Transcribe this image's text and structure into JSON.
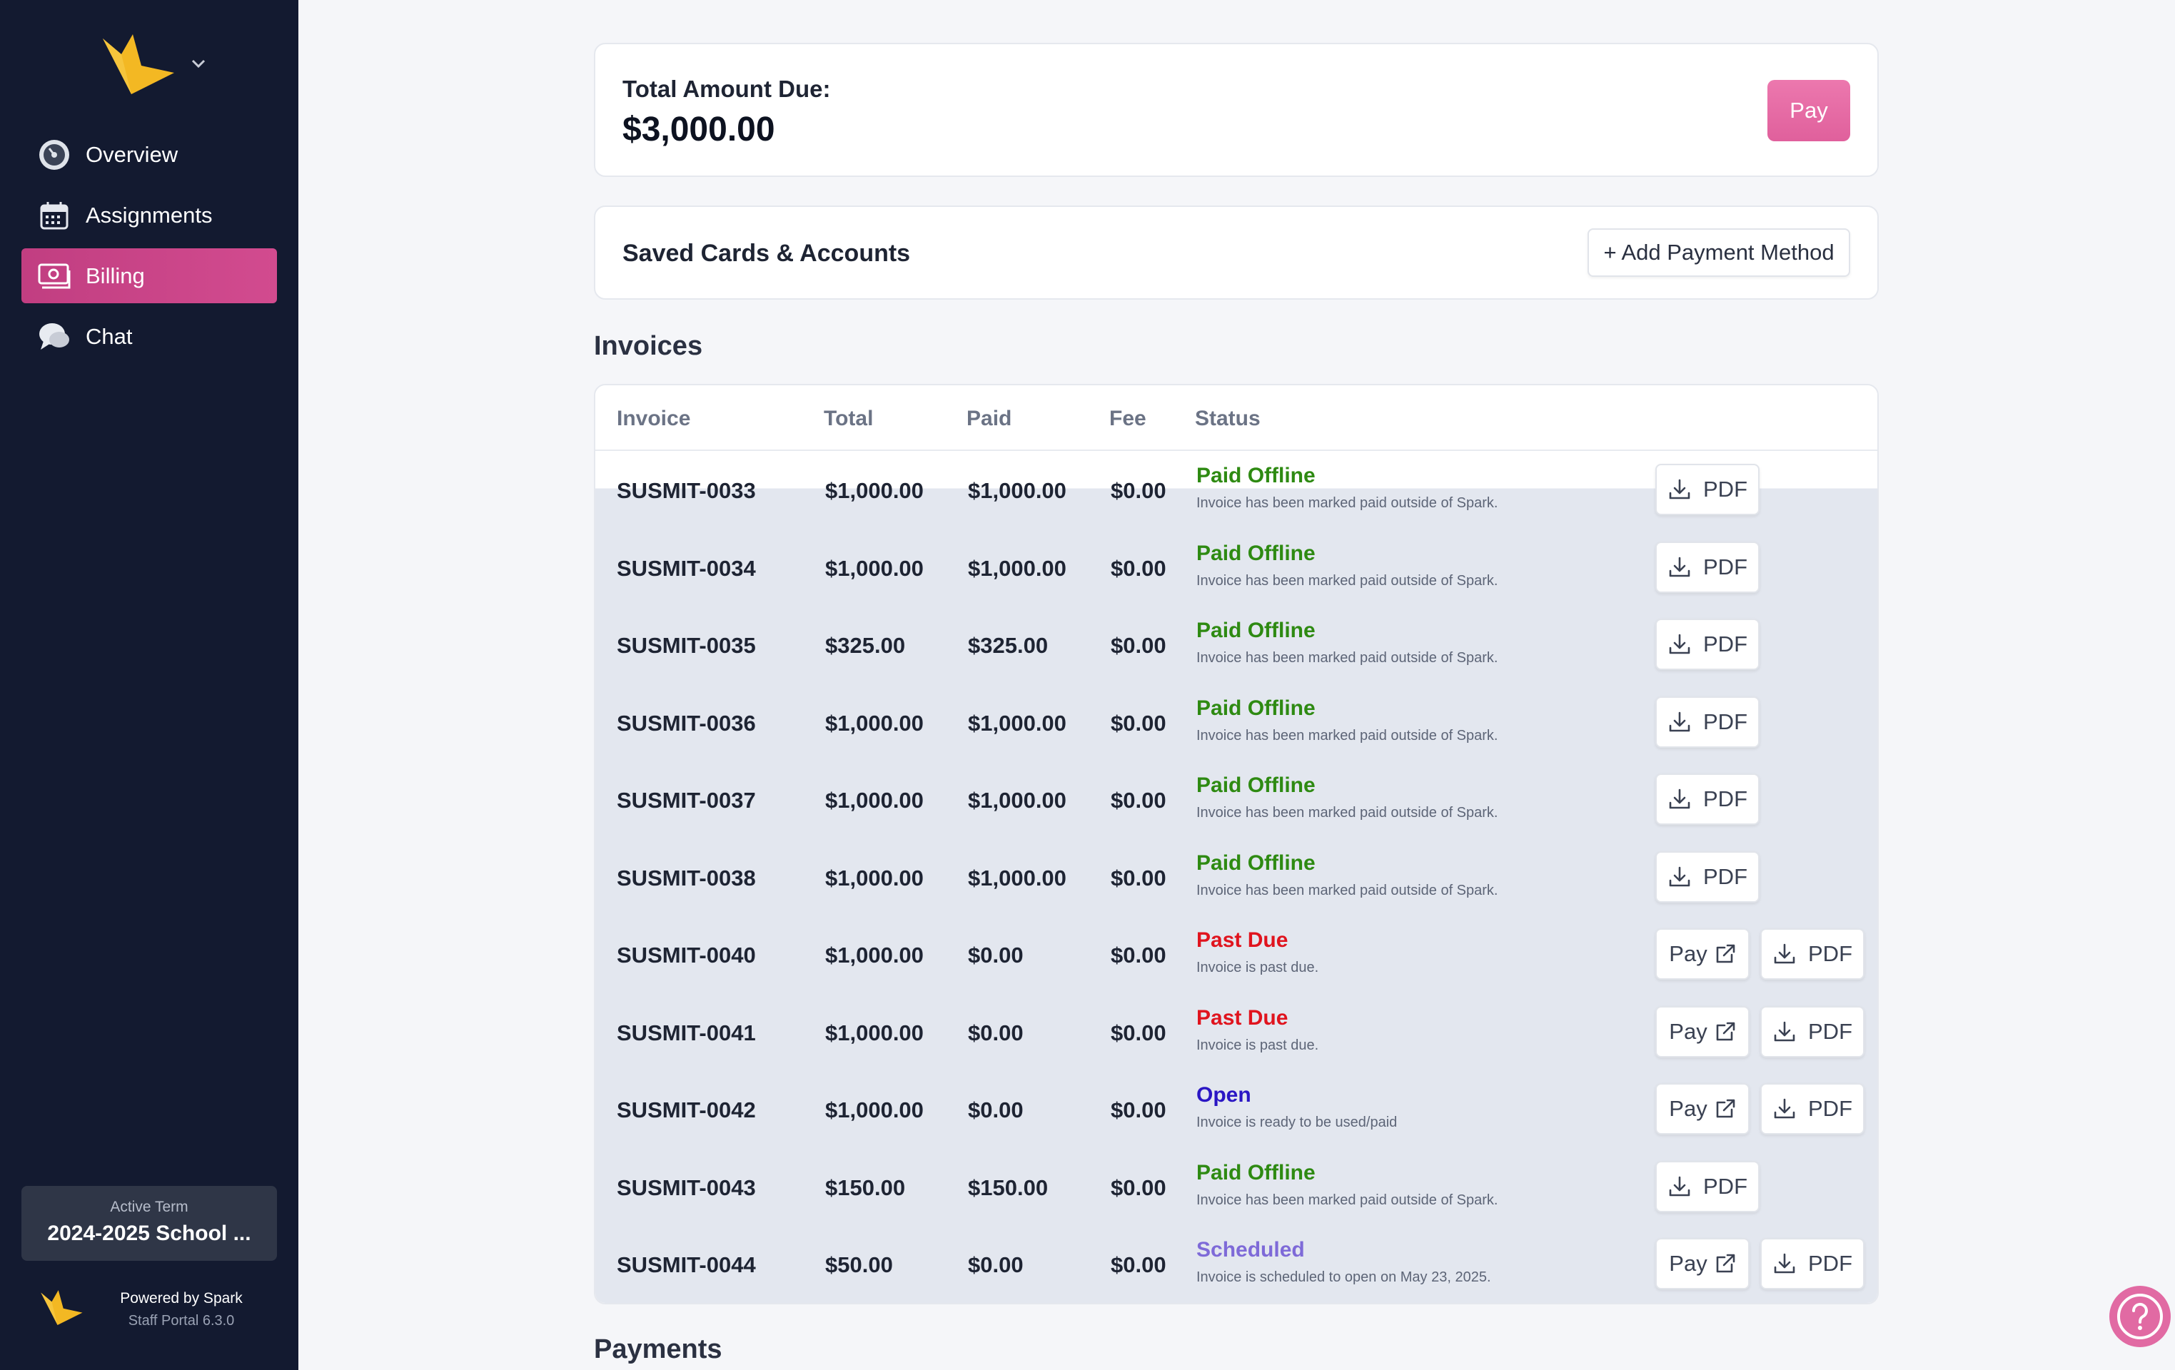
{
  "sidebar": {
    "items": [
      {
        "label": "Overview",
        "icon": "dashboard-icon"
      },
      {
        "label": "Assignments",
        "icon": "calendar-icon"
      },
      {
        "label": "Billing",
        "icon": "money-icon",
        "active": true
      },
      {
        "label": "Chat",
        "icon": "chat-icon"
      }
    ],
    "term_label": "Active Term",
    "term_value": "2024-2025 School ...",
    "powered_by": "Powered by Spark",
    "version": "Staff Portal 6.3.0"
  },
  "due": {
    "label": "Total Amount Due:",
    "value": "$3,000.00",
    "pay_label": "Pay"
  },
  "saved_cards": {
    "title": "Saved Cards & Accounts",
    "add_label": "+ Add Payment Method"
  },
  "invoices": {
    "title": "Invoices",
    "columns": [
      "Invoice",
      "Total",
      "Paid",
      "Fee",
      "Status"
    ],
    "pdf_label": "PDF",
    "pay_label": "Pay",
    "rows": [
      {
        "id": "SUSMIT-0033",
        "total": "$1,000.00",
        "paid": "$1,000.00",
        "fee": "$0.00",
        "status": "Paid Offline",
        "desc": "Invoice has been marked paid outside of Spark.",
        "kind": "paid"
      },
      {
        "id": "SUSMIT-0034",
        "total": "$1,000.00",
        "paid": "$1,000.00",
        "fee": "$0.00",
        "status": "Paid Offline",
        "desc": "Invoice has been marked paid outside of Spark.",
        "kind": "paid"
      },
      {
        "id": "SUSMIT-0035",
        "total": "$325.00",
        "paid": "$325.00",
        "fee": "$0.00",
        "status": "Paid Offline",
        "desc": "Invoice has been marked paid outside of Spark.",
        "kind": "paid"
      },
      {
        "id": "SUSMIT-0036",
        "total": "$1,000.00",
        "paid": "$1,000.00",
        "fee": "$0.00",
        "status": "Paid Offline",
        "desc": "Invoice has been marked paid outside of Spark.",
        "kind": "paid"
      },
      {
        "id": "SUSMIT-0037",
        "total": "$1,000.00",
        "paid": "$1,000.00",
        "fee": "$0.00",
        "status": "Paid Offline",
        "desc": "Invoice has been marked paid outside of Spark.",
        "kind": "paid"
      },
      {
        "id": "SUSMIT-0038",
        "total": "$1,000.00",
        "paid": "$1,000.00",
        "fee": "$0.00",
        "status": "Paid Offline",
        "desc": "Invoice has been marked paid outside of Spark.",
        "kind": "paid"
      },
      {
        "id": "SUSMIT-0040",
        "total": "$1,000.00",
        "paid": "$0.00",
        "fee": "$0.00",
        "status": "Past Due",
        "desc": "Invoice is past due.",
        "kind": "pastdue"
      },
      {
        "id": "SUSMIT-0041",
        "total": "$1,000.00",
        "paid": "$0.00",
        "fee": "$0.00",
        "status": "Past Due",
        "desc": "Invoice is past due.",
        "kind": "pastdue"
      },
      {
        "id": "SUSMIT-0042",
        "total": "$1,000.00",
        "paid": "$0.00",
        "fee": "$0.00",
        "status": "Open",
        "desc": "Invoice is ready to be used/paid",
        "kind": "open"
      },
      {
        "id": "SUSMIT-0043",
        "total": "$150.00",
        "paid": "$150.00",
        "fee": "$0.00",
        "status": "Paid Offline",
        "desc": "Invoice has been marked paid outside of Spark.",
        "kind": "paid"
      },
      {
        "id": "SUSMIT-0044",
        "total": "$50.00",
        "paid": "$0.00",
        "fee": "$0.00",
        "status": "Scheduled",
        "desc": "Invoice is scheduled to open on May 23, 2025.",
        "kind": "scheduled"
      }
    ]
  },
  "payments": {
    "title": "Payments"
  },
  "colors": {
    "sidebar_bg": "#131a30",
    "accent_pink": "#d24b8f",
    "paid": "#2e8a12",
    "pastdue": "#e0141e",
    "open": "#2a16c4",
    "scheduled": "#7e6ad8"
  }
}
